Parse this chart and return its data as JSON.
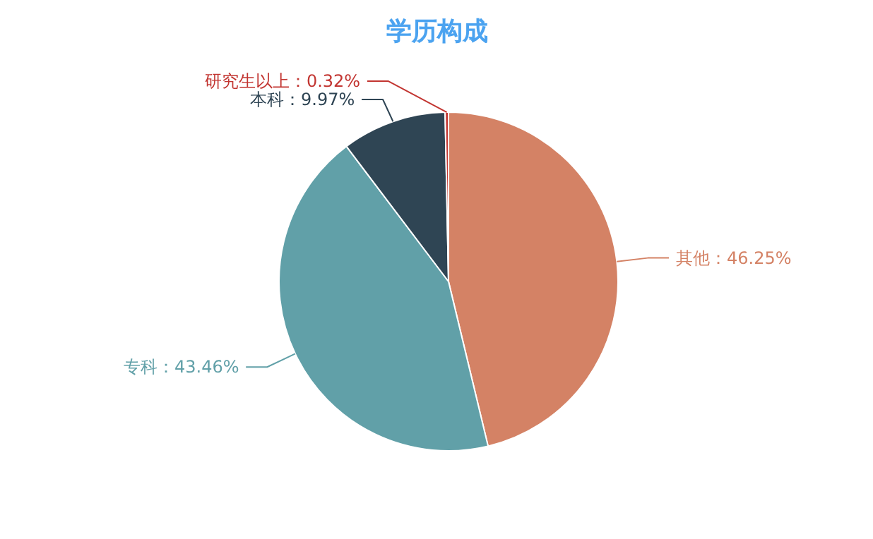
{
  "chart_data": {
    "type": "pie",
    "title": "学历构成",
    "categories": [
      "其他",
      "专科",
      "本科",
      "研究生以上"
    ],
    "values": [
      46.25,
      43.46,
      9.97,
      0.32
    ],
    "value_labels": [
      "：46.25%",
      "：43.46%",
      "：9.97%",
      "：0.32%"
    ],
    "colors": [
      "#d48265",
      "#61a0a8",
      "#2f4554",
      "#c23531"
    ]
  }
}
